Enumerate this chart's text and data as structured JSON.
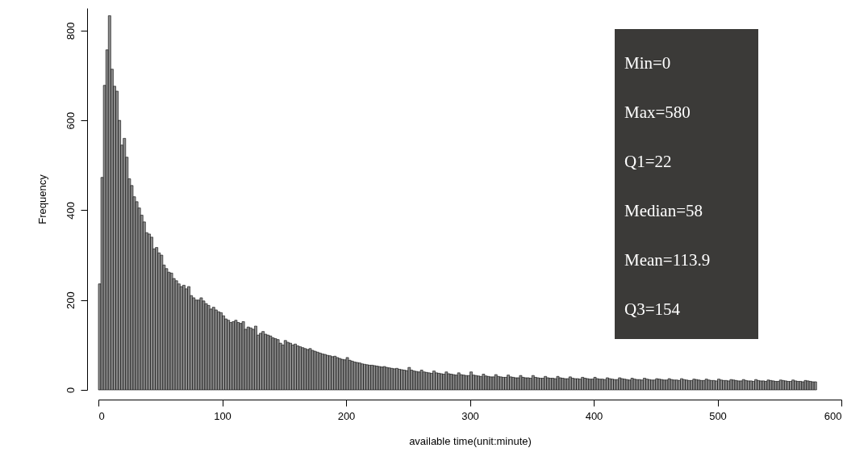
{
  "chart_data": {
    "type": "histogram",
    "xlabel": "available time(unit:minute)",
    "ylabel": "Frequency",
    "color": "#8c8c8c",
    "xlim": [
      0,
      600
    ],
    "xticks": [
      0,
      100,
      200,
      300,
      400,
      500,
      600
    ],
    "ylim": [
      0,
      850
    ],
    "yticks": [
      0,
      200,
      400,
      600,
      800
    ],
    "annotations": [
      "Min=0",
      "Max=580",
      "Q1=22",
      "Median=58",
      "Mean=113.9",
      "Q3=154"
    ],
    "bins": [
      0,
      2,
      4,
      6,
      8,
      10,
      12,
      14,
      16,
      18,
      20,
      22,
      24,
      26,
      28,
      30,
      32,
      34,
      36,
      38,
      40,
      42,
      44,
      46,
      48,
      50,
      52,
      54,
      56,
      58,
      60,
      62,
      64,
      66,
      68,
      70,
      72,
      74,
      76,
      78,
      80,
      82,
      84,
      86,
      88,
      90,
      92,
      94,
      96,
      98,
      100,
      102,
      104,
      106,
      108,
      110,
      112,
      114,
      116,
      118,
      120,
      122,
      124,
      126,
      128,
      130,
      132,
      134,
      136,
      138,
      140,
      142,
      144,
      146,
      148,
      150,
      152,
      154,
      156,
      158,
      160,
      162,
      164,
      166,
      168,
      170,
      172,
      174,
      176,
      178,
      180,
      182,
      184,
      186,
      188,
      190,
      192,
      194,
      196,
      198,
      200,
      202,
      204,
      206,
      208,
      210,
      212,
      214,
      216,
      218,
      220,
      222,
      224,
      226,
      228,
      230,
      232,
      234,
      236,
      238,
      240,
      242,
      244,
      246,
      248,
      250,
      252,
      254,
      256,
      258,
      260,
      262,
      264,
      266,
      268,
      270,
      272,
      274,
      276,
      278,
      280,
      282,
      284,
      286,
      288,
      290,
      292,
      294,
      296,
      298,
      300,
      302,
      304,
      306,
      308,
      310,
      312,
      314,
      316,
      318,
      320,
      322,
      324,
      326,
      328,
      330,
      332,
      334,
      336,
      338,
      340,
      342,
      344,
      346,
      348,
      350,
      352,
      354,
      356,
      358,
      360,
      362,
      364,
      366,
      368,
      370,
      372,
      374,
      376,
      378,
      380,
      382,
      384,
      386,
      388,
      390,
      392,
      394,
      396,
      398,
      400,
      402,
      404,
      406,
      408,
      410,
      412,
      414,
      416,
      418,
      420,
      422,
      424,
      426,
      428,
      430,
      432,
      434,
      436,
      438,
      440,
      442,
      444,
      446,
      448,
      450,
      452,
      454,
      456,
      458,
      460,
      462,
      464,
      466,
      468,
      470,
      472,
      474,
      476,
      478,
      480,
      482,
      484,
      486,
      488,
      490,
      492,
      494,
      496,
      498,
      500,
      502,
      504,
      506,
      508,
      510,
      512,
      514,
      516,
      518,
      520,
      522,
      524,
      526,
      528,
      530,
      532,
      534,
      536,
      538,
      540,
      542,
      544,
      546,
      548,
      550,
      552,
      554,
      556,
      558,
      560,
      562,
      564,
      566,
      568,
      570,
      572,
      574,
      576,
      578,
      580
    ],
    "values": [
      236,
      473,
      678,
      757,
      833,
      714,
      676,
      665,
      600,
      545,
      560,
      518,
      470,
      455,
      430,
      419,
      405,
      389,
      374,
      350,
      347,
      340,
      314,
      317,
      305,
      300,
      278,
      270,
      262,
      260,
      248,
      243,
      236,
      230,
      233,
      225,
      230,
      210,
      205,
      200,
      200,
      205,
      198,
      192,
      188,
      180,
      184,
      178,
      174,
      172,
      165,
      158,
      155,
      150,
      152,
      155,
      150,
      148,
      152,
      135,
      140,
      138,
      135,
      142,
      122,
      126,
      130,
      124,
      122,
      120,
      116,
      114,
      112,
      104,
      100,
      110,
      106,
      104,
      100,
      102,
      98,
      96,
      94,
      92,
      90,
      92,
      88,
      86,
      84,
      82,
      80,
      79,
      77,
      76,
      74,
      75,
      72,
      70,
      68,
      67,
      72,
      66,
      64,
      62,
      61,
      60,
      58,
      57,
      56,
      55,
      55,
      54,
      53,
      52,
      51,
      52,
      50,
      49,
      48,
      47,
      48,
      46,
      45,
      44,
      43,
      50,
      44,
      42,
      41,
      40,
      44,
      40,
      39,
      38,
      37,
      42,
      38,
      37,
      36,
      35,
      40,
      36,
      35,
      34,
      33,
      38,
      34,
      33,
      32,
      32,
      40,
      33,
      32,
      31,
      30,
      35,
      31,
      30,
      29,
      29,
      34,
      30,
      29,
      28,
      28,
      33,
      29,
      28,
      27,
      27,
      32,
      28,
      27,
      27,
      26,
      32,
      28,
      27,
      26,
      26,
      30,
      27,
      26,
      26,
      25,
      30,
      27,
      26,
      25,
      25,
      29,
      26,
      25,
      25,
      24,
      28,
      26,
      25,
      24,
      24,
      28,
      25,
      24,
      24,
      23,
      27,
      25,
      24,
      23,
      23,
      27,
      25,
      24,
      23,
      22,
      26,
      24,
      23,
      23,
      22,
      26,
      24,
      23,
      22,
      22,
      25,
      24,
      23,
      22,
      22,
      25,
      23,
      22,
      22,
      21,
      25,
      23,
      22,
      21,
      21,
      24,
      23,
      22,
      21,
      21,
      24,
      22,
      21,
      21,
      20,
      24,
      22,
      21,
      21,
      20,
      23,
      22,
      21,
      20,
      20,
      23,
      21,
      20,
      20,
      19,
      23,
      21,
      20,
      20,
      19,
      22,
      21,
      20,
      19,
      19,
      22,
      21,
      20,
      19,
      19,
      22,
      20,
      19,
      19,
      18,
      21,
      20,
      19,
      18,
      18
    ]
  }
}
